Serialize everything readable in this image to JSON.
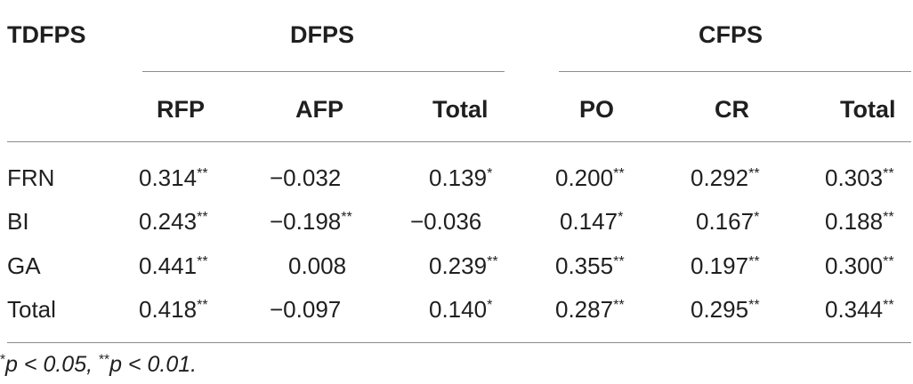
{
  "table": {
    "row_header_label": "TDFPS",
    "groups": [
      {
        "label": "DFPS",
        "columns": [
          "RFP",
          "AFP",
          "Total"
        ]
      },
      {
        "label": "CFPS",
        "columns": [
          "PO",
          "CR",
          "Total"
        ]
      }
    ],
    "rows": [
      {
        "label": "FRN",
        "cells": [
          {
            "value": "0.314",
            "sig": "**"
          },
          {
            "value": "−0.032",
            "sig": ""
          },
          {
            "value": "0.139",
            "sig": "*"
          },
          {
            "value": "0.200",
            "sig": "**"
          },
          {
            "value": "0.292",
            "sig": "**"
          },
          {
            "value": "0.303",
            "sig": "**"
          }
        ]
      },
      {
        "label": "BI",
        "cells": [
          {
            "value": "0.243",
            "sig": "**"
          },
          {
            "value": "−0.198",
            "sig": "**"
          },
          {
            "value": "−0.036",
            "sig": ""
          },
          {
            "value": "0.147",
            "sig": "*"
          },
          {
            "value": "0.167",
            "sig": "*"
          },
          {
            "value": "0.188",
            "sig": "**"
          }
        ]
      },
      {
        "label": "GA",
        "cells": [
          {
            "value": "0.441",
            "sig": "**"
          },
          {
            "value": "0.008",
            "sig": ""
          },
          {
            "value": "0.239",
            "sig": "**"
          },
          {
            "value": "0.355",
            "sig": "**"
          },
          {
            "value": "0.197",
            "sig": "**"
          },
          {
            "value": "0.300",
            "sig": "**"
          }
        ]
      },
      {
        "label": "Total",
        "cells": [
          {
            "value": "0.418",
            "sig": "**"
          },
          {
            "value": "−0.097",
            "sig": ""
          },
          {
            "value": "0.140",
            "sig": "*"
          },
          {
            "value": "0.287",
            "sig": "**"
          },
          {
            "value": "0.295",
            "sig": "**"
          },
          {
            "value": "0.344",
            "sig": "**"
          }
        ]
      }
    ]
  },
  "footnote": {
    "sig1_mark": "*",
    "sig1_text": "p < 0.05, ",
    "sig2_mark": "**",
    "sig2_text": "p < 0.01."
  }
}
